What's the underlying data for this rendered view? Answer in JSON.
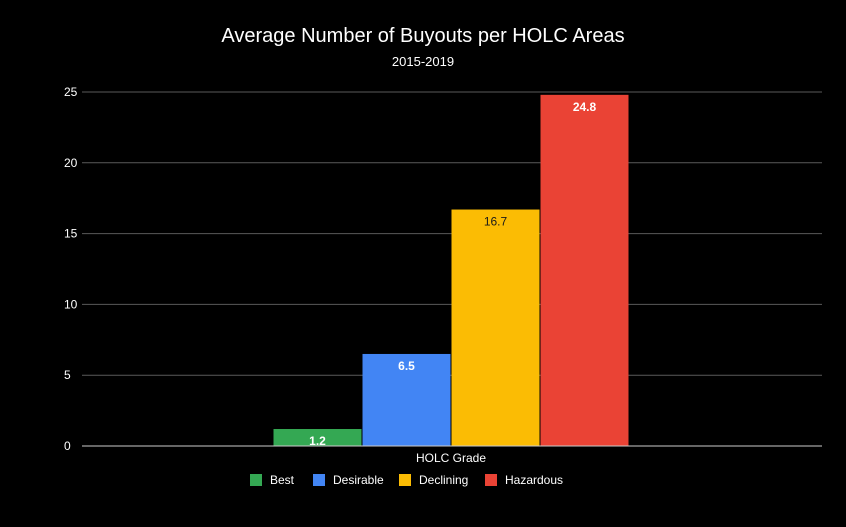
{
  "chart_data": {
    "type": "bar",
    "title": "Average Number of Buyouts per HOLC Areas",
    "subtitle": "2015-2019",
    "xlabel": "HOLC Grade",
    "ylabel": "",
    "ylim": [
      0,
      25
    ],
    "yticks": [
      0,
      5,
      10,
      15,
      20,
      25
    ],
    "grid": true,
    "legend_position": "bottom",
    "categories": [
      "HOLC Grade"
    ],
    "series": [
      {
        "name": "Best",
        "values": [
          1.2
        ],
        "label": "1.2",
        "color": "#34a853",
        "label_color": "#ffffff"
      },
      {
        "name": "Desirable",
        "values": [
          6.5
        ],
        "label": "6.5",
        "color": "#4285f4",
        "label_color": "#ffffff"
      },
      {
        "name": "Declining",
        "values": [
          16.7
        ],
        "label": "16.7",
        "color": "#fbbc04",
        "label_color": "#1a1a1a"
      },
      {
        "name": "Hazardous",
        "values": [
          24.8
        ],
        "label": "24.8",
        "color": "#ea4335",
        "label_color": "#ffffff"
      }
    ],
    "colors": {
      "background": "#000000",
      "text": "#ffffff",
      "grid": "#5a5a5a",
      "axis": "#cccccc"
    }
  }
}
